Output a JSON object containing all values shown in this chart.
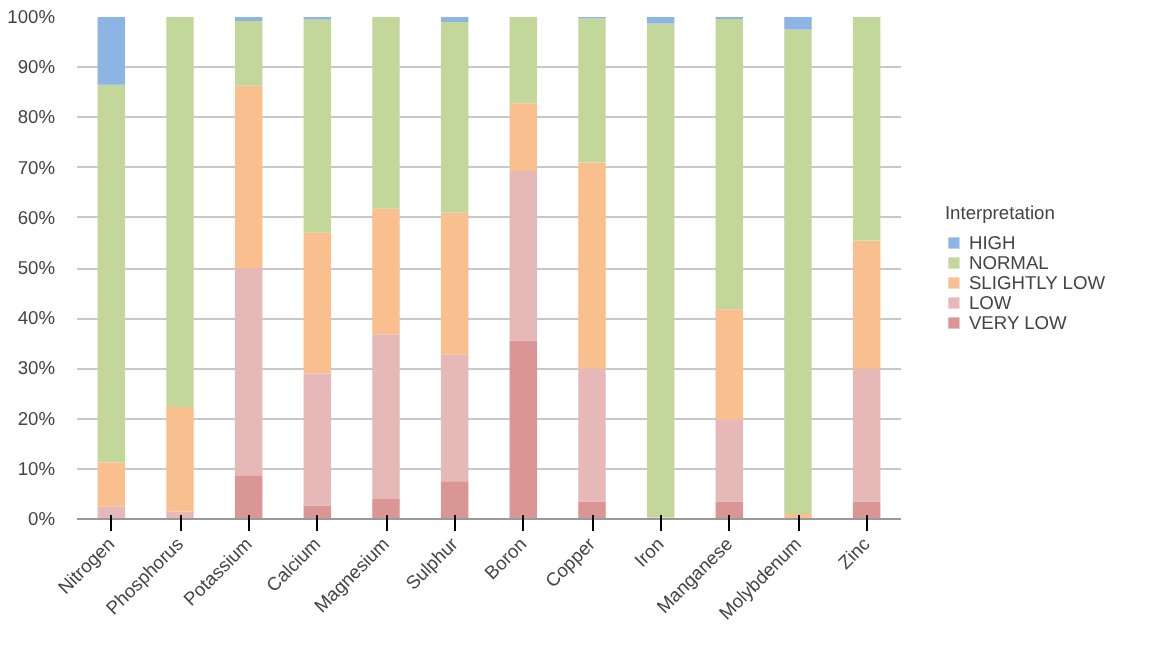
{
  "chart_data": {
    "type": "bar",
    "stacked": true,
    "categories": [
      "Nitrogen",
      "Phosphorus",
      "Potassium",
      "Calcium",
      "Magnesium",
      "Sulphur",
      "Boron",
      "Copper",
      "Iron",
      "Manganese",
      "Molybdenum",
      "Zinc"
    ],
    "series": [
      {
        "name": "VERY LOW",
        "color": "#da9694",
        "values": [
          0,
          0,
          8.7,
          2.7,
          4,
          7.5,
          35.5,
          3.5,
          0,
          3.5,
          0,
          3.5
        ]
      },
      {
        "name": "LOW",
        "color": "#e6b9b8",
        "values": [
          2.5,
          1.5,
          41.3,
          26.3,
          32.8,
          25.3,
          33.8,
          26.5,
          0,
          16.3,
          0,
          26.5
        ]
      },
      {
        "name": "SLIGHTLY LOW",
        "color": "#fabf8f",
        "values": [
          8.8,
          20.8,
          36.3,
          28,
          25,
          28.2,
          13.5,
          41,
          0.3,
          22,
          1,
          25.5
        ]
      },
      {
        "name": "NORMAL",
        "color": "#c4d79b",
        "values": [
          75.2,
          77.7,
          12.9,
          42.5,
          38.2,
          38,
          17.2,
          28.7,
          98.4,
          57.8,
          96.5,
          44.5
        ]
      },
      {
        "name": "HIGH",
        "color": "#8db4e2",
        "values": [
          13.5,
          0,
          0.8,
          0.5,
          0,
          1,
          0,
          0.3,
          1.3,
          0.4,
          2.5,
          0
        ]
      }
    ],
    "legend_title": "Interpretation",
    "legend": "right",
    "grid": "y",
    "ylim": [
      0,
      100
    ],
    "yticks": [
      {
        "value": 0,
        "label": "0%"
      },
      {
        "value": 10,
        "label": "10%"
      },
      {
        "value": 20,
        "label": "20%"
      },
      {
        "value": 30,
        "label": "30%"
      },
      {
        "value": 40,
        "label": "40%"
      },
      {
        "value": 50,
        "label": "50%"
      },
      {
        "value": 60,
        "label": "60%"
      },
      {
        "value": 70,
        "label": "70%"
      },
      {
        "value": 80,
        "label": "80%"
      },
      {
        "value": 90,
        "label": "90%"
      },
      {
        "value": 100,
        "label": "100%"
      }
    ]
  }
}
